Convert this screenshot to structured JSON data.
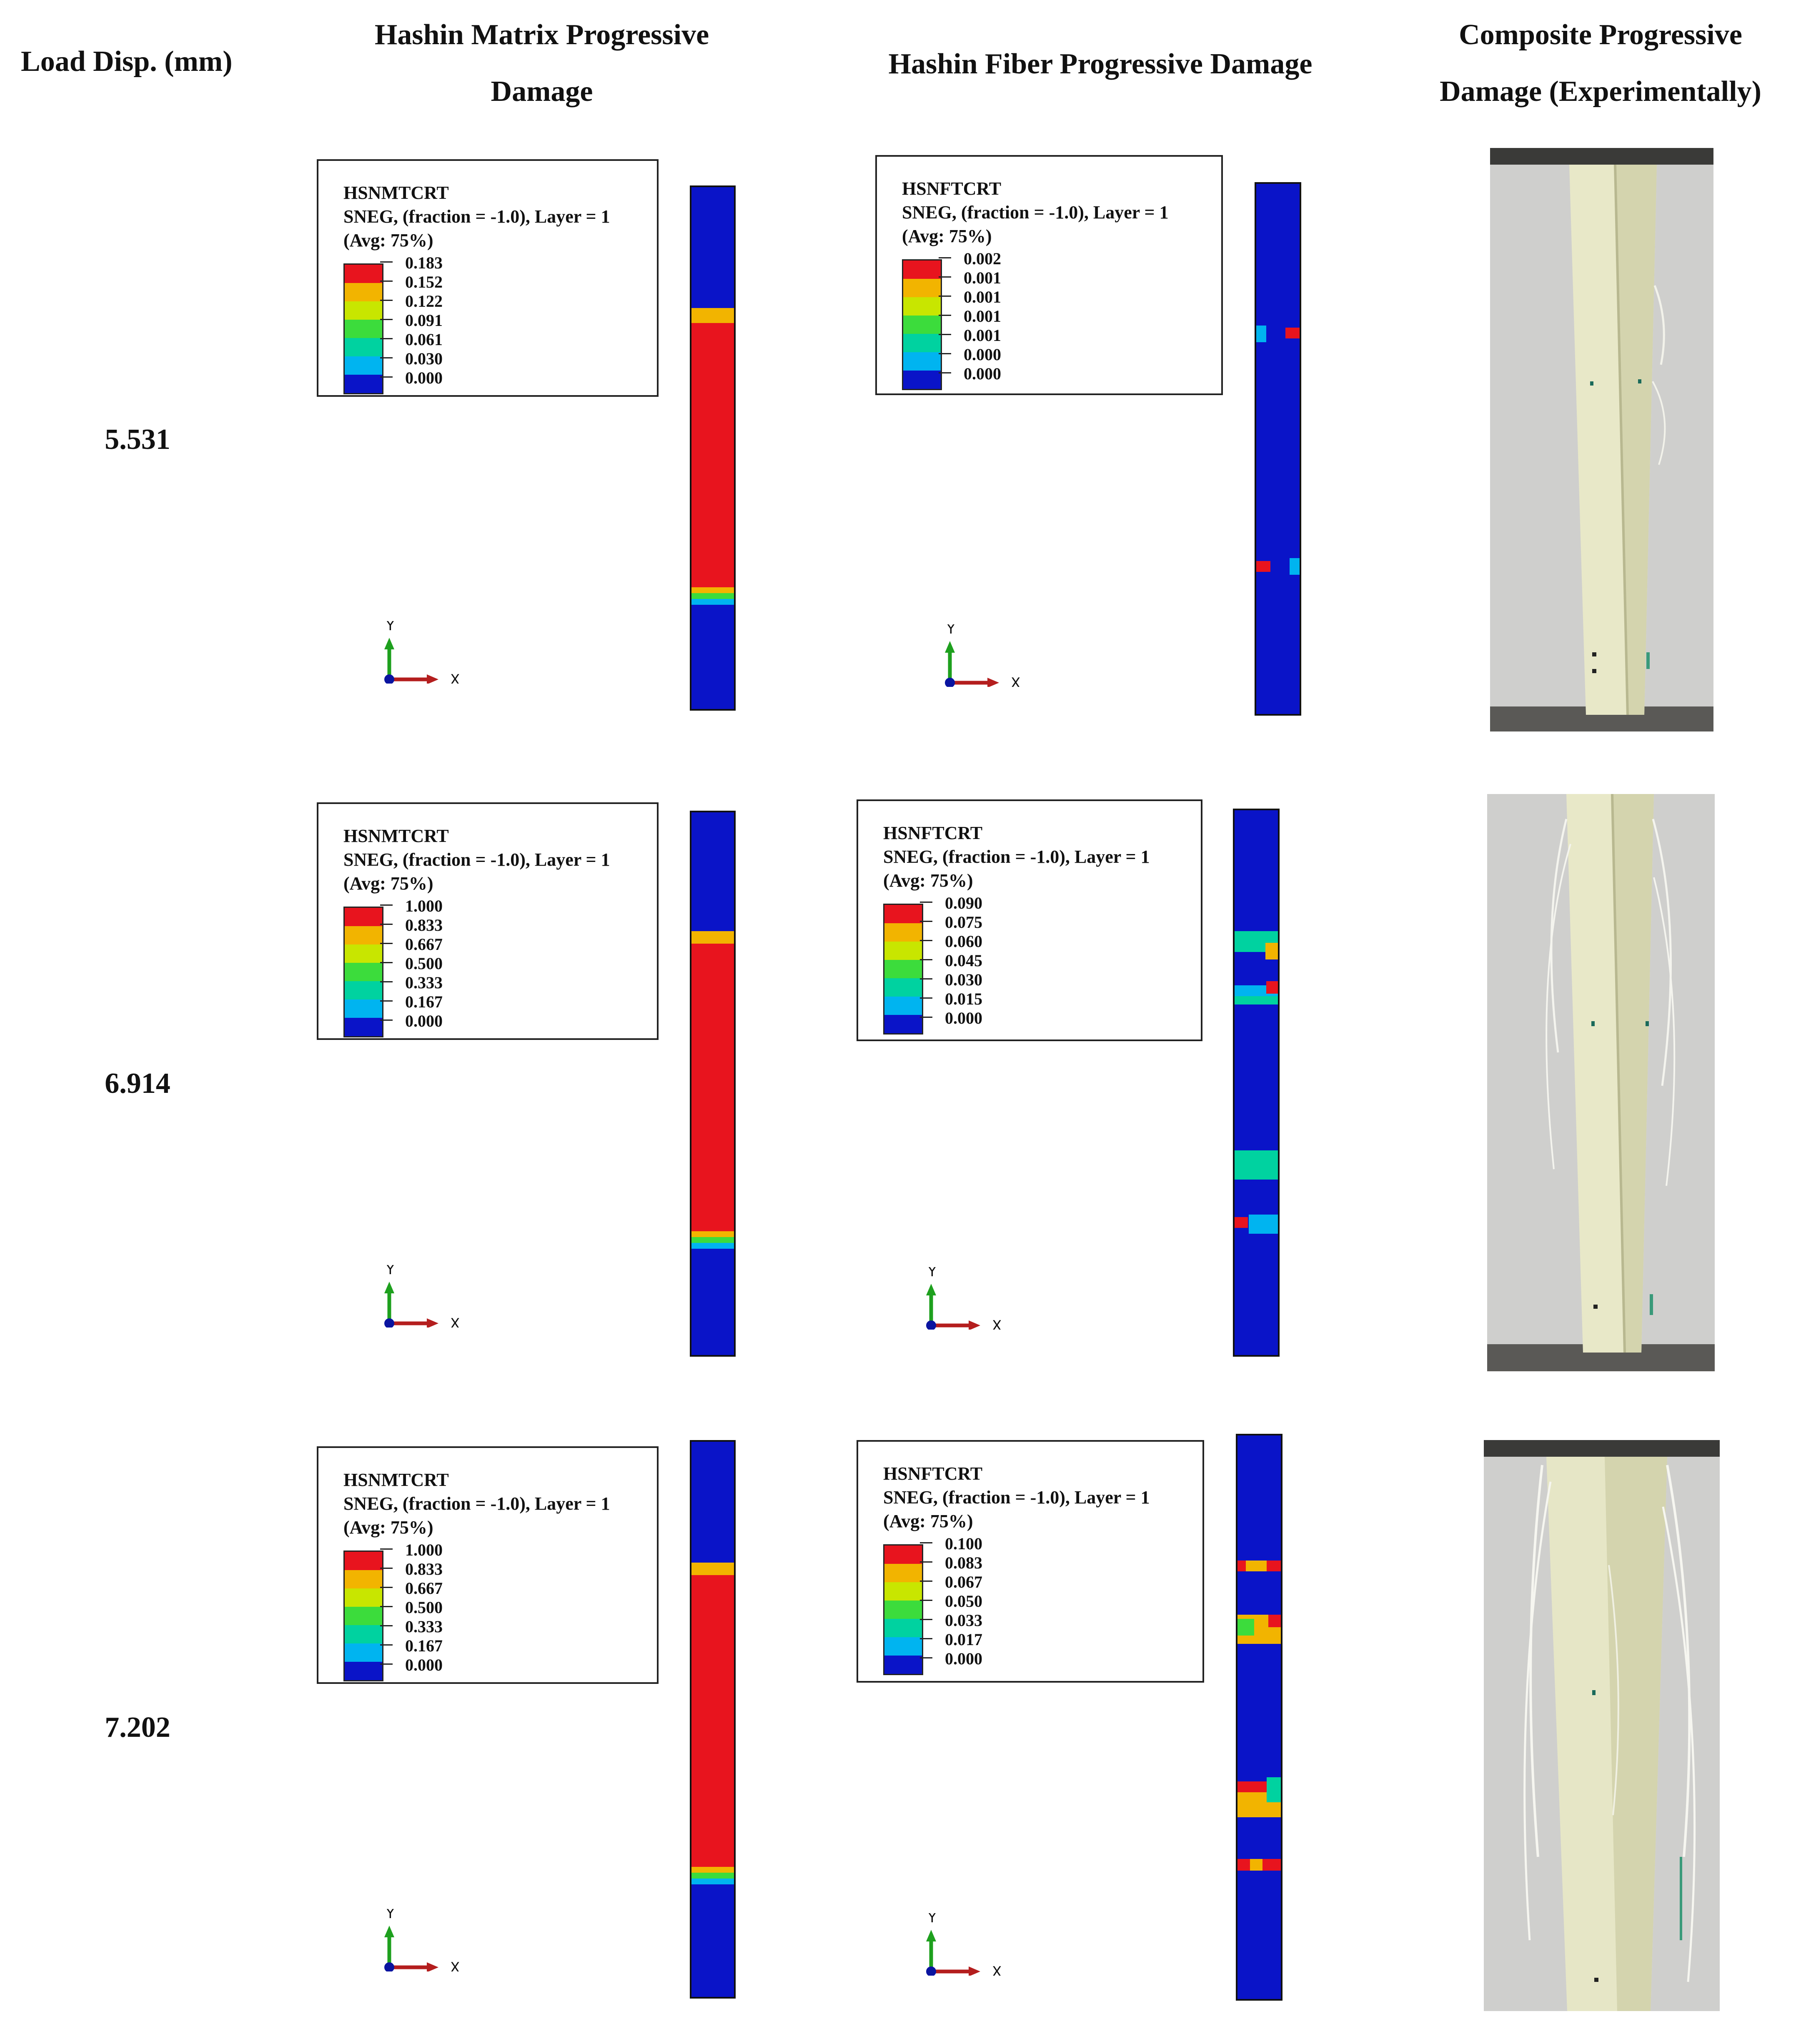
{
  "headers": {
    "load_disp": "Load Disp. (mm)",
    "matrix_line1": "Hashin Matrix Progressive",
    "matrix_line2": "Damage",
    "fiber": "Hashin Fiber Progressive Damage",
    "composite_line1": "Composite Progressive",
    "composite_line2": "Damage (Experimentally)"
  },
  "rows": [
    {
      "load": "5.531",
      "matrix_legend": {
        "variable": "HSNMTCRT",
        "section": "SNEG, (fraction = -1.0), Layer = 1",
        "avg": "(Avg: 75%)",
        "ticks": [
          "0.183",
          "0.152",
          "0.122",
          "0.091",
          "0.061",
          "0.030",
          "0.000"
        ]
      },
      "fiber_legend": {
        "variable": "HSNFTCRT",
        "section": "SNEG, (fraction = -1.0), Layer = 1",
        "avg": "(Avg: 75%)",
        "ticks": [
          "0.002",
          "0.001",
          "0.001",
          "0.001",
          "0.001",
          "0.000",
          "0.000"
        ]
      }
    },
    {
      "load": "6.914",
      "matrix_legend": {
        "variable": "HSNMTCRT",
        "section": "SNEG, (fraction = -1.0), Layer = 1",
        "avg": "(Avg: 75%)",
        "ticks": [
          "1.000",
          "0.833",
          "0.667",
          "0.500",
          "0.333",
          "0.167",
          "0.000"
        ]
      },
      "fiber_legend": {
        "variable": "HSNFTCRT",
        "section": "SNEG, (fraction = -1.0), Layer = 1",
        "avg": "(Avg: 75%)",
        "ticks": [
          "0.090",
          "0.075",
          "0.060",
          "0.045",
          "0.030",
          "0.015",
          "0.000"
        ]
      }
    },
    {
      "load": "7.202",
      "matrix_legend": {
        "variable": "HSNMTCRT",
        "section": "SNEG, (fraction = -1.0), Layer = 1",
        "avg": "(Avg: 75%)",
        "ticks": [
          "1.000",
          "0.833",
          "0.667",
          "0.500",
          "0.333",
          "0.167",
          "0.000"
        ]
      },
      "fiber_legend": {
        "variable": "HSNFTCRT",
        "section": "SNEG, (fraction = -1.0), Layer = 1",
        "avg": "(Avg: 75%)",
        "ticks": [
          "0.100",
          "0.083",
          "0.067",
          "0.050",
          "0.033",
          "0.017",
          "0.000"
        ]
      }
    }
  ],
  "triad": {
    "y_label": "Y",
    "x_label": "X"
  },
  "contour_colors": [
    "#e8141e",
    "#f2b400",
    "#c8e600",
    "#3cdc3c",
    "#00d2a0",
    "#00b4f0",
    "#0a14c8"
  ]
}
